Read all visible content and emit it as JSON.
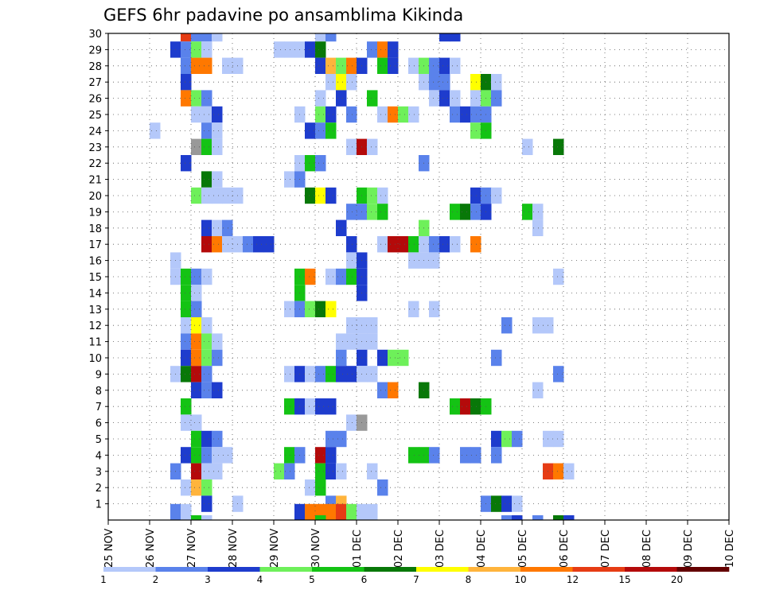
{
  "chart_data": {
    "type": "heatmap",
    "title": "GEFS 6hr padavine po ansamblima Kikinda",
    "xlabel": "",
    "ylabel": "",
    "x_start": "25 NOV",
    "x_end": "10 DEC",
    "x_step_hours": 6,
    "xtick_labels": [
      "25 NOV",
      "26 NOV",
      "27 NOV",
      "28 NOV",
      "29 NOV",
      "30 NOV",
      "01 DEC",
      "02 DEC",
      "03 DEC",
      "04 DEC",
      "05 DEC",
      "06 DEC",
      "07 DEC",
      "08 DEC",
      "09 DEC",
      "10 DEC"
    ],
    "ytick_labels": [
      "1",
      "2",
      "3",
      "4",
      "5",
      "6",
      "7",
      "8",
      "9",
      "10",
      "11",
      "12",
      "13",
      "14",
      "15",
      "16",
      "17",
      "18",
      "19",
      "20",
      "21",
      "22",
      "23",
      "24",
      "25",
      "26",
      "27",
      "28",
      "29",
      "30"
    ],
    "ylim": [
      0,
      30
    ],
    "grid": true,
    "colorbar": {
      "levels": [
        "1",
        "2",
        "3",
        "4",
        "5",
        "6",
        "7",
        "8",
        "10",
        "12",
        "15",
        "20"
      ],
      "colors": [
        "#b4c8fa",
        "#5a82eb",
        "#1e3ccd",
        "#6ef05a",
        "#14c314",
        "#087808",
        "#ffff00",
        "#ffb43c",
        "#ff7800",
        "#e63c14",
        "#b40a0a",
        "#640000"
      ]
    },
    "cells": [
      [
        30,
        7,
        12
      ],
      [
        30,
        8,
        2
      ],
      [
        30,
        9,
        2
      ],
      [
        30,
        10,
        1
      ],
      [
        30,
        20,
        1
      ],
      [
        30,
        21,
        2
      ],
      [
        30,
        32,
        3
      ],
      [
        30,
        33,
        3
      ],
      [
        29,
        6,
        3
      ],
      [
        29,
        7,
        2
      ],
      [
        29,
        8,
        4
      ],
      [
        29,
        9,
        1
      ],
      [
        29,
        16,
        1
      ],
      [
        29,
        17,
        1
      ],
      [
        29,
        18,
        1
      ],
      [
        29,
        19,
        3
      ],
      [
        29,
        20,
        6
      ],
      [
        29,
        25,
        2
      ],
      [
        29,
        26,
        10
      ],
      [
        29,
        27,
        3
      ],
      [
        28,
        7,
        2
      ],
      [
        28,
        8,
        10
      ],
      [
        28,
        9,
        10
      ],
      [
        28,
        11,
        1
      ],
      [
        28,
        12,
        1
      ],
      [
        28,
        20,
        3
      ],
      [
        28,
        21,
        8
      ],
      [
        28,
        22,
        4
      ],
      [
        28,
        23,
        10
      ],
      [
        28,
        24,
        3
      ],
      [
        28,
        26,
        5
      ],
      [
        28,
        27,
        3
      ],
      [
        28,
        29,
        1
      ],
      [
        28,
        30,
        4
      ],
      [
        28,
        31,
        2
      ],
      [
        28,
        32,
        3
      ],
      [
        28,
        33,
        1
      ],
      [
        27,
        7,
        3
      ],
      [
        27,
        21,
        1
      ],
      [
        27,
        22,
        7
      ],
      [
        27,
        23,
        1
      ],
      [
        27,
        30,
        1
      ],
      [
        27,
        31,
        2
      ],
      [
        27,
        32,
        2
      ],
      [
        27,
        35,
        7
      ],
      [
        27,
        36,
        6
      ],
      [
        27,
        37,
        1
      ],
      [
        26,
        7,
        10
      ],
      [
        26,
        8,
        4
      ],
      [
        26,
        9,
        2
      ],
      [
        26,
        20,
        1
      ],
      [
        26,
        22,
        3
      ],
      [
        26,
        25,
        5
      ],
      [
        26,
        31,
        1
      ],
      [
        26,
        32,
        3
      ],
      [
        26,
        33,
        1
      ],
      [
        26,
        35,
        1
      ],
      [
        26,
        36,
        4
      ],
      [
        26,
        37,
        2
      ],
      [
        25,
        8,
        1
      ],
      [
        25,
        9,
        1
      ],
      [
        25,
        10,
        3
      ],
      [
        25,
        18,
        1
      ],
      [
        25,
        20,
        4
      ],
      [
        25,
        21,
        3
      ],
      [
        25,
        23,
        2
      ],
      [
        25,
        26,
        1
      ],
      [
        25,
        27,
        10
      ],
      [
        25,
        28,
        4
      ],
      [
        25,
        29,
        1
      ],
      [
        25,
        33,
        2
      ],
      [
        25,
        34,
        3
      ],
      [
        25,
        35,
        2
      ],
      [
        25,
        36,
        2
      ],
      [
        24,
        4,
        1
      ],
      [
        24,
        9,
        2
      ],
      [
        24,
        10,
        1
      ],
      [
        24,
        19,
        3
      ],
      [
        24,
        20,
        2
      ],
      [
        24,
        21,
        5
      ],
      [
        24,
        35,
        4
      ],
      [
        24,
        36,
        5
      ],
      [
        23,
        8,
        9
      ],
      [
        23,
        9,
        5
      ],
      [
        23,
        10,
        1
      ],
      [
        23,
        23,
        1
      ],
      [
        23,
        24,
        15
      ],
      [
        23,
        25,
        1
      ],
      [
        23,
        40,
        1
      ],
      [
        23,
        43,
        6
      ],
      [
        22,
        7,
        3
      ],
      [
        22,
        18,
        1
      ],
      [
        22,
        19,
        5
      ],
      [
        22,
        20,
        2
      ],
      [
        22,
        30,
        2
      ],
      [
        21,
        9,
        6
      ],
      [
        21,
        10,
        1
      ],
      [
        21,
        17,
        1
      ],
      [
        21,
        18,
        2
      ],
      [
        20,
        8,
        4
      ],
      [
        20,
        9,
        1
      ],
      [
        20,
        10,
        1
      ],
      [
        20,
        11,
        1
      ],
      [
        20,
        12,
        1
      ],
      [
        20,
        19,
        6
      ],
      [
        20,
        20,
        7
      ],
      [
        20,
        21,
        3
      ],
      [
        20,
        24,
        5
      ],
      [
        20,
        25,
        4
      ],
      [
        20,
        26,
        1
      ],
      [
        20,
        35,
        3
      ],
      [
        20,
        36,
        2
      ],
      [
        20,
        37,
        1
      ],
      [
        19,
        23,
        2
      ],
      [
        19,
        24,
        2
      ],
      [
        19,
        25,
        4
      ],
      [
        19,
        26,
        5
      ],
      [
        19,
        33,
        5
      ],
      [
        19,
        34,
        6
      ],
      [
        19,
        35,
        2
      ],
      [
        19,
        36,
        3
      ],
      [
        19,
        40,
        5
      ],
      [
        19,
        41,
        1
      ],
      [
        18,
        9,
        3
      ],
      [
        18,
        10,
        1
      ],
      [
        18,
        11,
        2
      ],
      [
        18,
        22,
        3
      ],
      [
        18,
        30,
        4
      ],
      [
        18,
        41,
        1
      ],
      [
        17,
        9,
        15
      ],
      [
        17,
        10,
        10
      ],
      [
        17,
        11,
        1
      ],
      [
        17,
        12,
        1
      ],
      [
        17,
        13,
        2
      ],
      [
        17,
        14,
        3
      ],
      [
        17,
        15,
        3
      ],
      [
        17,
        23,
        3
      ],
      [
        17,
        26,
        1
      ],
      [
        17,
        27,
        15
      ],
      [
        17,
        28,
        15
      ],
      [
        17,
        29,
        5
      ],
      [
        17,
        30,
        1
      ],
      [
        17,
        31,
        2
      ],
      [
        17,
        32,
        3
      ],
      [
        17,
        33,
        1
      ],
      [
        17,
        35,
        10
      ],
      [
        16,
        6,
        1
      ],
      [
        16,
        23,
        1
      ],
      [
        16,
        24,
        3
      ],
      [
        16,
        29,
        1
      ],
      [
        16,
        30,
        1
      ],
      [
        16,
        31,
        1
      ],
      [
        15,
        6,
        1
      ],
      [
        15,
        7,
        5
      ],
      [
        15,
        8,
        2
      ],
      [
        15,
        9,
        1
      ],
      [
        15,
        18,
        5
      ],
      [
        15,
        19,
        10
      ],
      [
        15,
        21,
        1
      ],
      [
        15,
        22,
        2
      ],
      [
        15,
        23,
        5
      ],
      [
        15,
        24,
        3
      ],
      [
        15,
        43,
        1
      ],
      [
        14,
        7,
        5
      ],
      [
        14,
        8,
        1
      ],
      [
        14,
        18,
        5
      ],
      [
        14,
        24,
        3
      ],
      [
        13,
        7,
        5
      ],
      [
        13,
        8,
        2
      ],
      [
        13,
        17,
        1
      ],
      [
        13,
        18,
        2
      ],
      [
        13,
        19,
        4
      ],
      [
        13,
        20,
        6
      ],
      [
        13,
        21,
        7
      ],
      [
        13,
        29,
        1
      ],
      [
        13,
        31,
        1
      ],
      [
        12,
        7,
        1
      ],
      [
        12,
        8,
        7
      ],
      [
        12,
        9,
        1
      ],
      [
        12,
        23,
        1
      ],
      [
        12,
        24,
        1
      ],
      [
        12,
        25,
        1
      ],
      [
        12,
        38,
        2
      ],
      [
        12,
        41,
        1
      ],
      [
        12,
        42,
        1
      ],
      [
        11,
        7,
        2
      ],
      [
        11,
        8,
        10
      ],
      [
        11,
        9,
        4
      ],
      [
        11,
        10,
        1
      ],
      [
        11,
        22,
        1
      ],
      [
        11,
        23,
        1
      ],
      [
        11,
        24,
        1
      ],
      [
        11,
        25,
        1
      ],
      [
        10,
        7,
        3
      ],
      [
        10,
        8,
        10
      ],
      [
        10,
        9,
        4
      ],
      [
        10,
        10,
        2
      ],
      [
        10,
        22,
        2
      ],
      [
        10,
        24,
        3
      ],
      [
        10,
        26,
        3
      ],
      [
        10,
        27,
        4
      ],
      [
        10,
        28,
        4
      ],
      [
        10,
        37,
        2
      ],
      [
        9,
        6,
        1
      ],
      [
        9,
        7,
        6
      ],
      [
        9,
        8,
        15
      ],
      [
        9,
        9,
        2
      ],
      [
        9,
        17,
        1
      ],
      [
        9,
        18,
        3
      ],
      [
        9,
        19,
        1
      ],
      [
        9,
        20,
        2
      ],
      [
        9,
        21,
        5
      ],
      [
        9,
        22,
        3
      ],
      [
        9,
        23,
        3
      ],
      [
        9,
        24,
        1
      ],
      [
        9,
        25,
        1
      ],
      [
        9,
        43,
        2
      ],
      [
        8,
        8,
        3
      ],
      [
        8,
        9,
        2
      ],
      [
        8,
        10,
        3
      ],
      [
        8,
        26,
        2
      ],
      [
        8,
        27,
        10
      ],
      [
        8,
        30,
        6
      ],
      [
        8,
        41,
        1
      ],
      [
        7,
        7,
        5
      ],
      [
        7,
        17,
        5
      ],
      [
        7,
        18,
        3
      ],
      [
        7,
        19,
        1
      ],
      [
        7,
        20,
        3
      ],
      [
        7,
        21,
        3
      ],
      [
        7,
        33,
        5
      ],
      [
        7,
        34,
        15
      ],
      [
        7,
        35,
        6
      ],
      [
        7,
        36,
        5
      ],
      [
        6,
        7,
        1
      ],
      [
        6,
        8,
        1
      ],
      [
        6,
        23,
        1
      ],
      [
        6,
        24,
        9
      ],
      [
        5,
        8,
        5
      ],
      [
        5,
        9,
        3
      ],
      [
        5,
        10,
        2
      ],
      [
        5,
        21,
        2
      ],
      [
        5,
        22,
        2
      ],
      [
        5,
        37,
        3
      ],
      [
        5,
        38,
        4
      ],
      [
        5,
        39,
        2
      ],
      [
        5,
        42,
        1
      ],
      [
        5,
        43,
        1
      ],
      [
        4,
        7,
        3
      ],
      [
        4,
        8,
        5
      ],
      [
        4,
        9,
        2
      ],
      [
        4,
        10,
        1
      ],
      [
        4,
        11,
        1
      ],
      [
        4,
        17,
        5
      ],
      [
        4,
        18,
        2
      ],
      [
        4,
        20,
        15
      ],
      [
        4,
        21,
        3
      ],
      [
        4,
        29,
        5
      ],
      [
        4,
        30,
        5
      ],
      [
        4,
        31,
        2
      ],
      [
        4,
        34,
        2
      ],
      [
        4,
        35,
        2
      ],
      [
        4,
        37,
        2
      ],
      [
        3,
        6,
        2
      ],
      [
        3,
        8,
        15
      ],
      [
        3,
        9,
        1
      ],
      [
        3,
        10,
        1
      ],
      [
        3,
        16,
        4
      ],
      [
        3,
        17,
        2
      ],
      [
        3,
        20,
        5
      ],
      [
        3,
        21,
        3
      ],
      [
        3,
        22,
        1
      ],
      [
        3,
        25,
        1
      ],
      [
        3,
        42,
        12
      ],
      [
        3,
        43,
        10
      ],
      [
        3,
        44,
        1
      ],
      [
        2,
        7,
        1
      ],
      [
        2,
        8,
        8
      ],
      [
        2,
        9,
        4
      ],
      [
        2,
        19,
        1
      ],
      [
        2,
        20,
        5
      ],
      [
        2,
        26,
        2
      ],
      [
        1,
        9,
        3
      ],
      [
        1,
        12,
        1
      ],
      [
        1,
        21,
        2
      ],
      [
        1,
        22,
        8
      ],
      [
        1,
        36,
        2
      ],
      [
        1,
        37,
        6
      ],
      [
        1,
        38,
        3
      ],
      [
        1,
        39,
        1
      ],
      [
        0,
        6,
        2
      ],
      [
        0,
        7,
        1
      ],
      [
        0,
        18,
        3
      ],
      [
        0,
        19,
        10
      ],
      [
        0,
        20,
        10
      ],
      [
        0,
        21,
        10
      ],
      [
        0,
        22,
        12
      ],
      [
        0,
        23,
        4
      ],
      [
        0,
        24,
        1
      ],
      [
        0,
        25,
        1
      ],
      [
        -1,
        8,
        5
      ],
      [
        -1,
        9,
        1
      ],
      [
        -1,
        20,
        5
      ],
      [
        -1,
        38,
        2
      ],
      [
        -1,
        39,
        3
      ],
      [
        -1,
        41,
        2
      ],
      [
        -1,
        43,
        6
      ],
      [
        -1,
        44,
        3
      ]
    ]
  }
}
